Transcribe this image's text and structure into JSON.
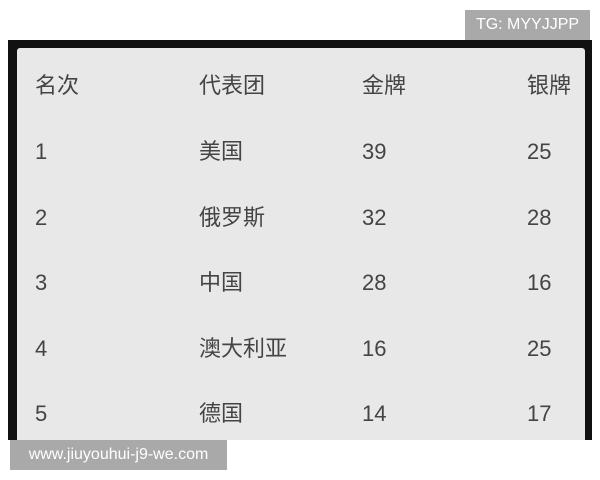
{
  "watermark_top": "TG: MYYJJPP",
  "watermark_bottom": "www.jiuyouhui-j9-we.com",
  "table": {
    "headers": [
      "名次",
      "代表团",
      "金牌",
      "银牌"
    ],
    "rows": [
      [
        "1",
        "美国",
        "39",
        "25"
      ],
      [
        "2",
        "俄罗斯",
        "32",
        "28"
      ],
      [
        "3",
        "中国",
        "28",
        "16"
      ],
      [
        "4",
        "澳大利亚",
        "16",
        "25"
      ],
      [
        "5",
        "德国",
        "14",
        "17"
      ]
    ]
  }
}
